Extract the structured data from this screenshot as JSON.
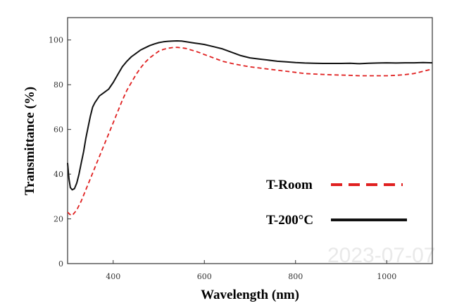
{
  "chart_data": {
    "type": "line",
    "xlabel": "Wavelength (nm)",
    "ylabel": "Transmittance (%)",
    "xlim": [
      300,
      1100
    ],
    "ylim": [
      0,
      110
    ],
    "x_ticks": [
      400,
      600,
      800,
      1000
    ],
    "y_ticks": [
      0,
      20,
      40,
      60,
      80,
      100
    ],
    "grid": false,
    "legend_position": "lower-right",
    "watermark": "2023-07-07",
    "series": [
      {
        "name": "T-Room",
        "color": "#e02020",
        "style": "dashed",
        "x": [
          300,
          305,
          310,
          320,
          330,
          340,
          350,
          360,
          370,
          380,
          390,
          400,
          410,
          420,
          430,
          440,
          450,
          460,
          470,
          480,
          490,
          500,
          510,
          520,
          530,
          540,
          550,
          560,
          570,
          580,
          590,
          600,
          620,
          640,
          660,
          680,
          700,
          720,
          740,
          760,
          780,
          800,
          820,
          840,
          860,
          880,
          900,
          920,
          940,
          960,
          980,
          1000,
          1020,
          1040,
          1060,
          1080,
          1100
        ],
        "values": [
          23,
          22,
          21.5,
          24,
          28,
          33,
          38,
          43,
          48,
          53,
          58,
          63,
          68,
          73,
          77.5,
          81,
          84.5,
          87.5,
          90,
          92,
          93.5,
          95,
          95.8,
          96.3,
          96.6,
          96.7,
          96.5,
          96.2,
          95.6,
          95,
          94.3,
          93.5,
          92,
          90.5,
          89.5,
          88.7,
          88,
          87.5,
          87,
          86.5,
          86,
          85.5,
          85,
          84.8,
          84.6,
          84.4,
          84.3,
          84.2,
          84,
          84,
          84,
          84,
          84.2,
          84.5,
          85,
          86,
          87
        ]
      },
      {
        "name": "T-200°C",
        "color": "#111111",
        "style": "solid",
        "x": [
          300,
          303,
          306,
          310,
          315,
          320,
          325,
          330,
          335,
          340,
          345,
          350,
          355,
          360,
          370,
          380,
          390,
          400,
          410,
          420,
          430,
          440,
          450,
          460,
          470,
          480,
          490,
          500,
          510,
          520,
          530,
          540,
          550,
          560,
          570,
          580,
          590,
          600,
          620,
          640,
          660,
          680,
          700,
          720,
          740,
          760,
          780,
          800,
          820,
          840,
          860,
          880,
          900,
          920,
          940,
          960,
          980,
          1000,
          1020,
          1040,
          1060,
          1080,
          1100
        ],
        "values": [
          45,
          38,
          34,
          33,
          33.5,
          36,
          40,
          45,
          50,
          56,
          61,
          66,
          70,
          72,
          75,
          76.5,
          78,
          81,
          84.5,
          88,
          90.5,
          92.5,
          94,
          95.5,
          96.5,
          97.5,
          98.2,
          98.8,
          99.2,
          99.4,
          99.5,
          99.6,
          99.5,
          99.2,
          98.9,
          98.6,
          98.3,
          98,
          97,
          96,
          94.5,
          93,
          92,
          91.5,
          91,
          90.5,
          90.2,
          89.9,
          89.7,
          89.6,
          89.5,
          89.5,
          89.5,
          89.6,
          89.4,
          89.6,
          89.7,
          89.8,
          89.7,
          89.8,
          89.8,
          89.9,
          89.8
        ]
      }
    ]
  }
}
